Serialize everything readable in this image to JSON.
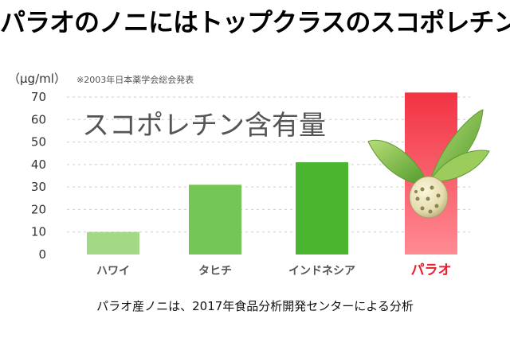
{
  "headline": "パラオのノニにはトップクラスのスコポレチン",
  "unit_label": "（μg/ml）",
  "source_note": "※2003年日本薬学会総会発表",
  "footer_note": "パラオ産ノニは、2017年食品分析開発センターによる分析",
  "colors": {
    "bar_green_light": "#9fd77f",
    "bar_green_dark": "#3aa824",
    "bar_red_light": "#ff6b77",
    "bar_red_dark": "#e8202e",
    "highlight_label": "#e8202e",
    "grid": "#cccccc"
  },
  "chart_data": {
    "type": "bar",
    "title": "スコポレチン含有量",
    "ylabel": "（μg/ml）",
    "ylim": [
      0,
      70
    ],
    "yticks": [
      0,
      10,
      20,
      30,
      40,
      50,
      60,
      70
    ],
    "categories": [
      "ハワイ",
      "タヒチ",
      "インドネシア",
      "パラオ"
    ],
    "values": [
      10,
      31,
      41,
      72
    ],
    "highlight": "パラオ",
    "grid": "dashed horizontal"
  },
  "decor": {
    "noni_fruit_icon": "noni-fruit-with-leaves"
  }
}
